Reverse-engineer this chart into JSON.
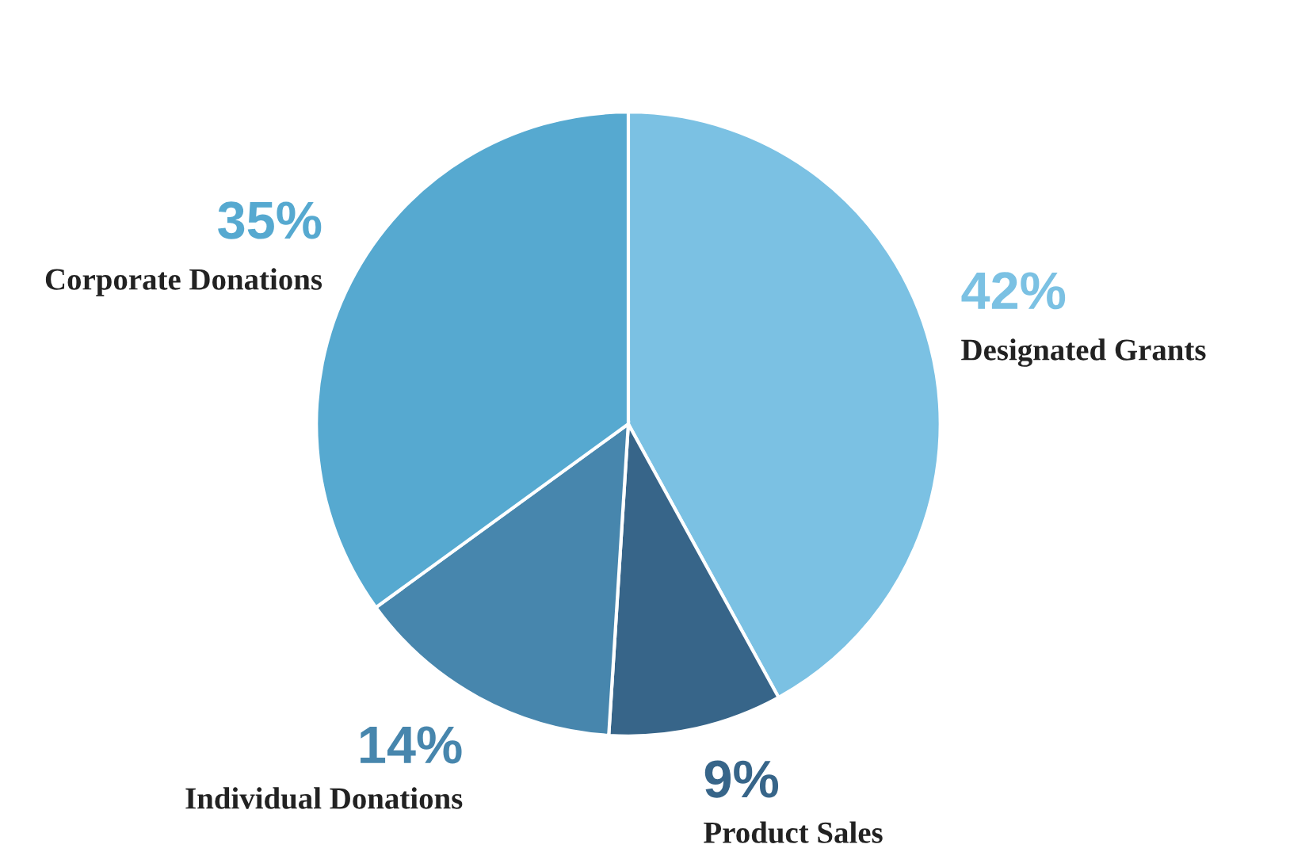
{
  "chart_data": {
    "type": "pie",
    "categories": [
      "Designated Grants",
      "Product Sales",
      "Individual Donations",
      "Corporate Donations"
    ],
    "values": [
      42,
      9,
      14,
      35
    ],
    "value_labels": [
      "42%",
      "9%",
      "14%",
      "35%"
    ],
    "colors": [
      "#7bc1e3",
      "#376589",
      "#4786ad",
      "#56a9d0"
    ],
    "legend": false
  }
}
